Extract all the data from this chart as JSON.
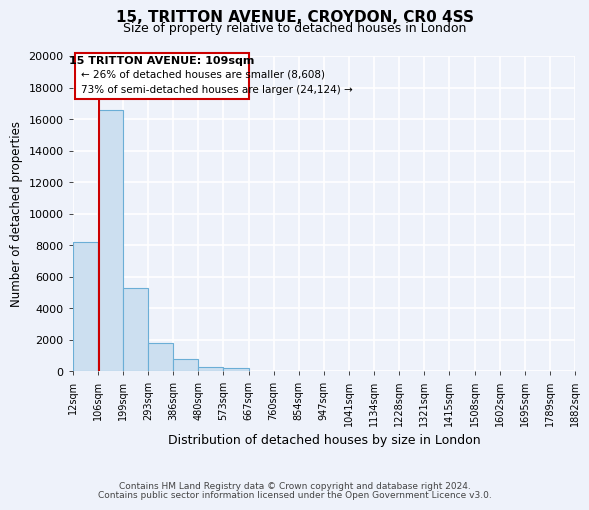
{
  "title1": "15, TRITTON AVENUE, CROYDON, CR0 4SS",
  "title2": "Size of property relative to detached houses in London",
  "xlabel": "Distribution of detached houses by size in London",
  "ylabel": "Number of detached properties",
  "bin_labels": [
    "12sqm",
    "106sqm",
    "199sqm",
    "293sqm",
    "386sqm",
    "480sqm",
    "573sqm",
    "667sqm",
    "760sqm",
    "854sqm",
    "947sqm",
    "1041sqm",
    "1134sqm",
    "1228sqm",
    "1321sqm",
    "1415sqm",
    "1508sqm",
    "1602sqm",
    "1695sqm",
    "1789sqm",
    "1882sqm"
  ],
  "bar_heights": [
    8200,
    16600,
    5300,
    1800,
    750,
    280,
    180,
    0,
    0,
    0,
    0,
    0,
    0,
    0,
    0,
    0,
    0,
    0,
    0,
    0
  ],
  "bar_color": "#ccdff0",
  "bar_edge_color": "#6baed6",
  "ylim": [
    0,
    20000
  ],
  "yticks": [
    0,
    2000,
    4000,
    6000,
    8000,
    10000,
    12000,
    14000,
    16000,
    18000,
    20000
  ],
  "property_line_label": "15 TRITTON AVENUE: 109sqm",
  "annotation_line1": "← 26% of detached houses are smaller (8,608)",
  "annotation_line2": "73% of semi-detached houses are larger (24,124) →",
  "annotation_box_color": "#ffffff",
  "annotation_box_edge": "#cc0000",
  "vline_color": "#cc0000",
  "footer1": "Contains HM Land Registry data © Crown copyright and database right 2024.",
  "footer2": "Contains public sector information licensed under the Open Government Licence v3.0.",
  "background_color": "#eef2fa",
  "plot_bg_color": "#eef2fa",
  "grid_color": "#ffffff"
}
